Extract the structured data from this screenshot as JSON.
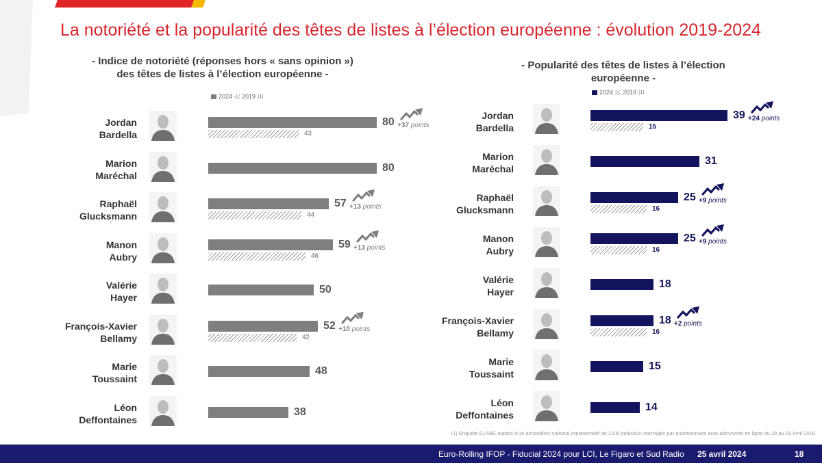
{
  "slide": {
    "title": "La notoriété et la popularité des têtes de listes à l’élection européenne : évolution 2019-2024",
    "left_subtitle_1": "- Indice de notoriété (réponses hors « sans opinion »)",
    "left_subtitle_2": "des têtes de listes à l’élection européenne -",
    "right_subtitle_1": "- Popularité des têtes de listes à l’élection",
    "right_subtitle_2": "européenne -",
    "legend_2024": "2024",
    "legend_2019": "2019",
    "legend_note": "(1)",
    "footnote": "(1) Enquête ELABE auprès d’un échantillon national représentatif de 1200 individus interrogés par questionnaire auto-administré en ligne du 28 au 29 Avril 2019",
    "footer_source": "Euro-Rolling IFOP - Fiducial 2024 pour LCI, Le Figaro et Sud Radio",
    "footer_date": "25 avril 2024",
    "page_number": "18"
  },
  "colors": {
    "title_red": "#d7262d",
    "left_bar_2024": "#7f7f7f",
    "left_value": "#595959",
    "right_bar_2024": "#14145e",
    "footer_navy": "#1a1a6e",
    "deco_red": "#e02628",
    "deco_yellow": "#f5b800"
  },
  "candidates": [
    {
      "line1": "Jordan",
      "line2": "Bardella",
      "icon": "person-photo-icon"
    },
    {
      "line1": "Marion",
      "line2": "Maréchal",
      "icon": "person-photo-icon"
    },
    {
      "line1": "Raphaël",
      "line2": "Glucksmann",
      "icon": "person-photo-icon"
    },
    {
      "line1": "Manon",
      "line2": "Aubry",
      "icon": "person-photo-icon"
    },
    {
      "line1": "Valérie",
      "line2": "Hayer",
      "icon": "person-photo-icon"
    },
    {
      "line1": "François-Xavier",
      "line2": "Bellamy",
      "icon": "person-photo-icon"
    },
    {
      "line1": "Marie",
      "line2": "Toussaint",
      "icon": "person-photo-icon"
    },
    {
      "line1": "Léon",
      "line2": "Deffontaines",
      "icon": "person-photo-icon"
    }
  ],
  "chart_data": [
    {
      "type": "bar",
      "orientation": "horizontal",
      "categories": [
        "Jordan Bardella",
        "Marion Maréchal",
        "Raphaël Glucksmann",
        "Manon Aubry",
        "Valérie Hayer",
        "François-Xavier Bellamy",
        "Marie Toussaint",
        "Léon Deffontaines"
      ],
      "series": [
        {
          "name": "2024",
          "values": [
            80,
            80,
            57,
            59,
            50,
            52,
            48,
            38
          ]
        },
        {
          "name": "2019",
          "values": [
            43,
            null,
            44,
            46,
            null,
            42,
            null,
            null
          ]
        }
      ],
      "deltas": [
        "+37",
        null,
        "+13",
        "+13",
        null,
        "+10",
        null,
        null
      ],
      "delta_unit": "points",
      "xlim": [
        0,
        100
      ],
      "legend": "top"
    },
    {
      "type": "bar",
      "orientation": "horizontal",
      "categories": [
        "Jordan Bardella",
        "Marion Maréchal",
        "Raphaël Glucksmann",
        "Manon Aubry",
        "Valérie Hayer",
        "François-Xavier Bellamy",
        "Marie Toussaint",
        "Léon Deffontaines"
      ],
      "series": [
        {
          "name": "2024",
          "values": [
            39,
            31,
            25,
            25,
            18,
            18,
            15,
            14
          ]
        },
        {
          "name": "2019",
          "values": [
            15,
            null,
            16,
            16,
            null,
            16,
            null,
            null
          ]
        }
      ],
      "deltas": [
        "+24",
        null,
        "+9",
        "+9",
        null,
        "+2",
        null,
        null
      ],
      "delta_unit": "points",
      "xlim": [
        0,
        39
      ],
      "legend": "top"
    }
  ]
}
